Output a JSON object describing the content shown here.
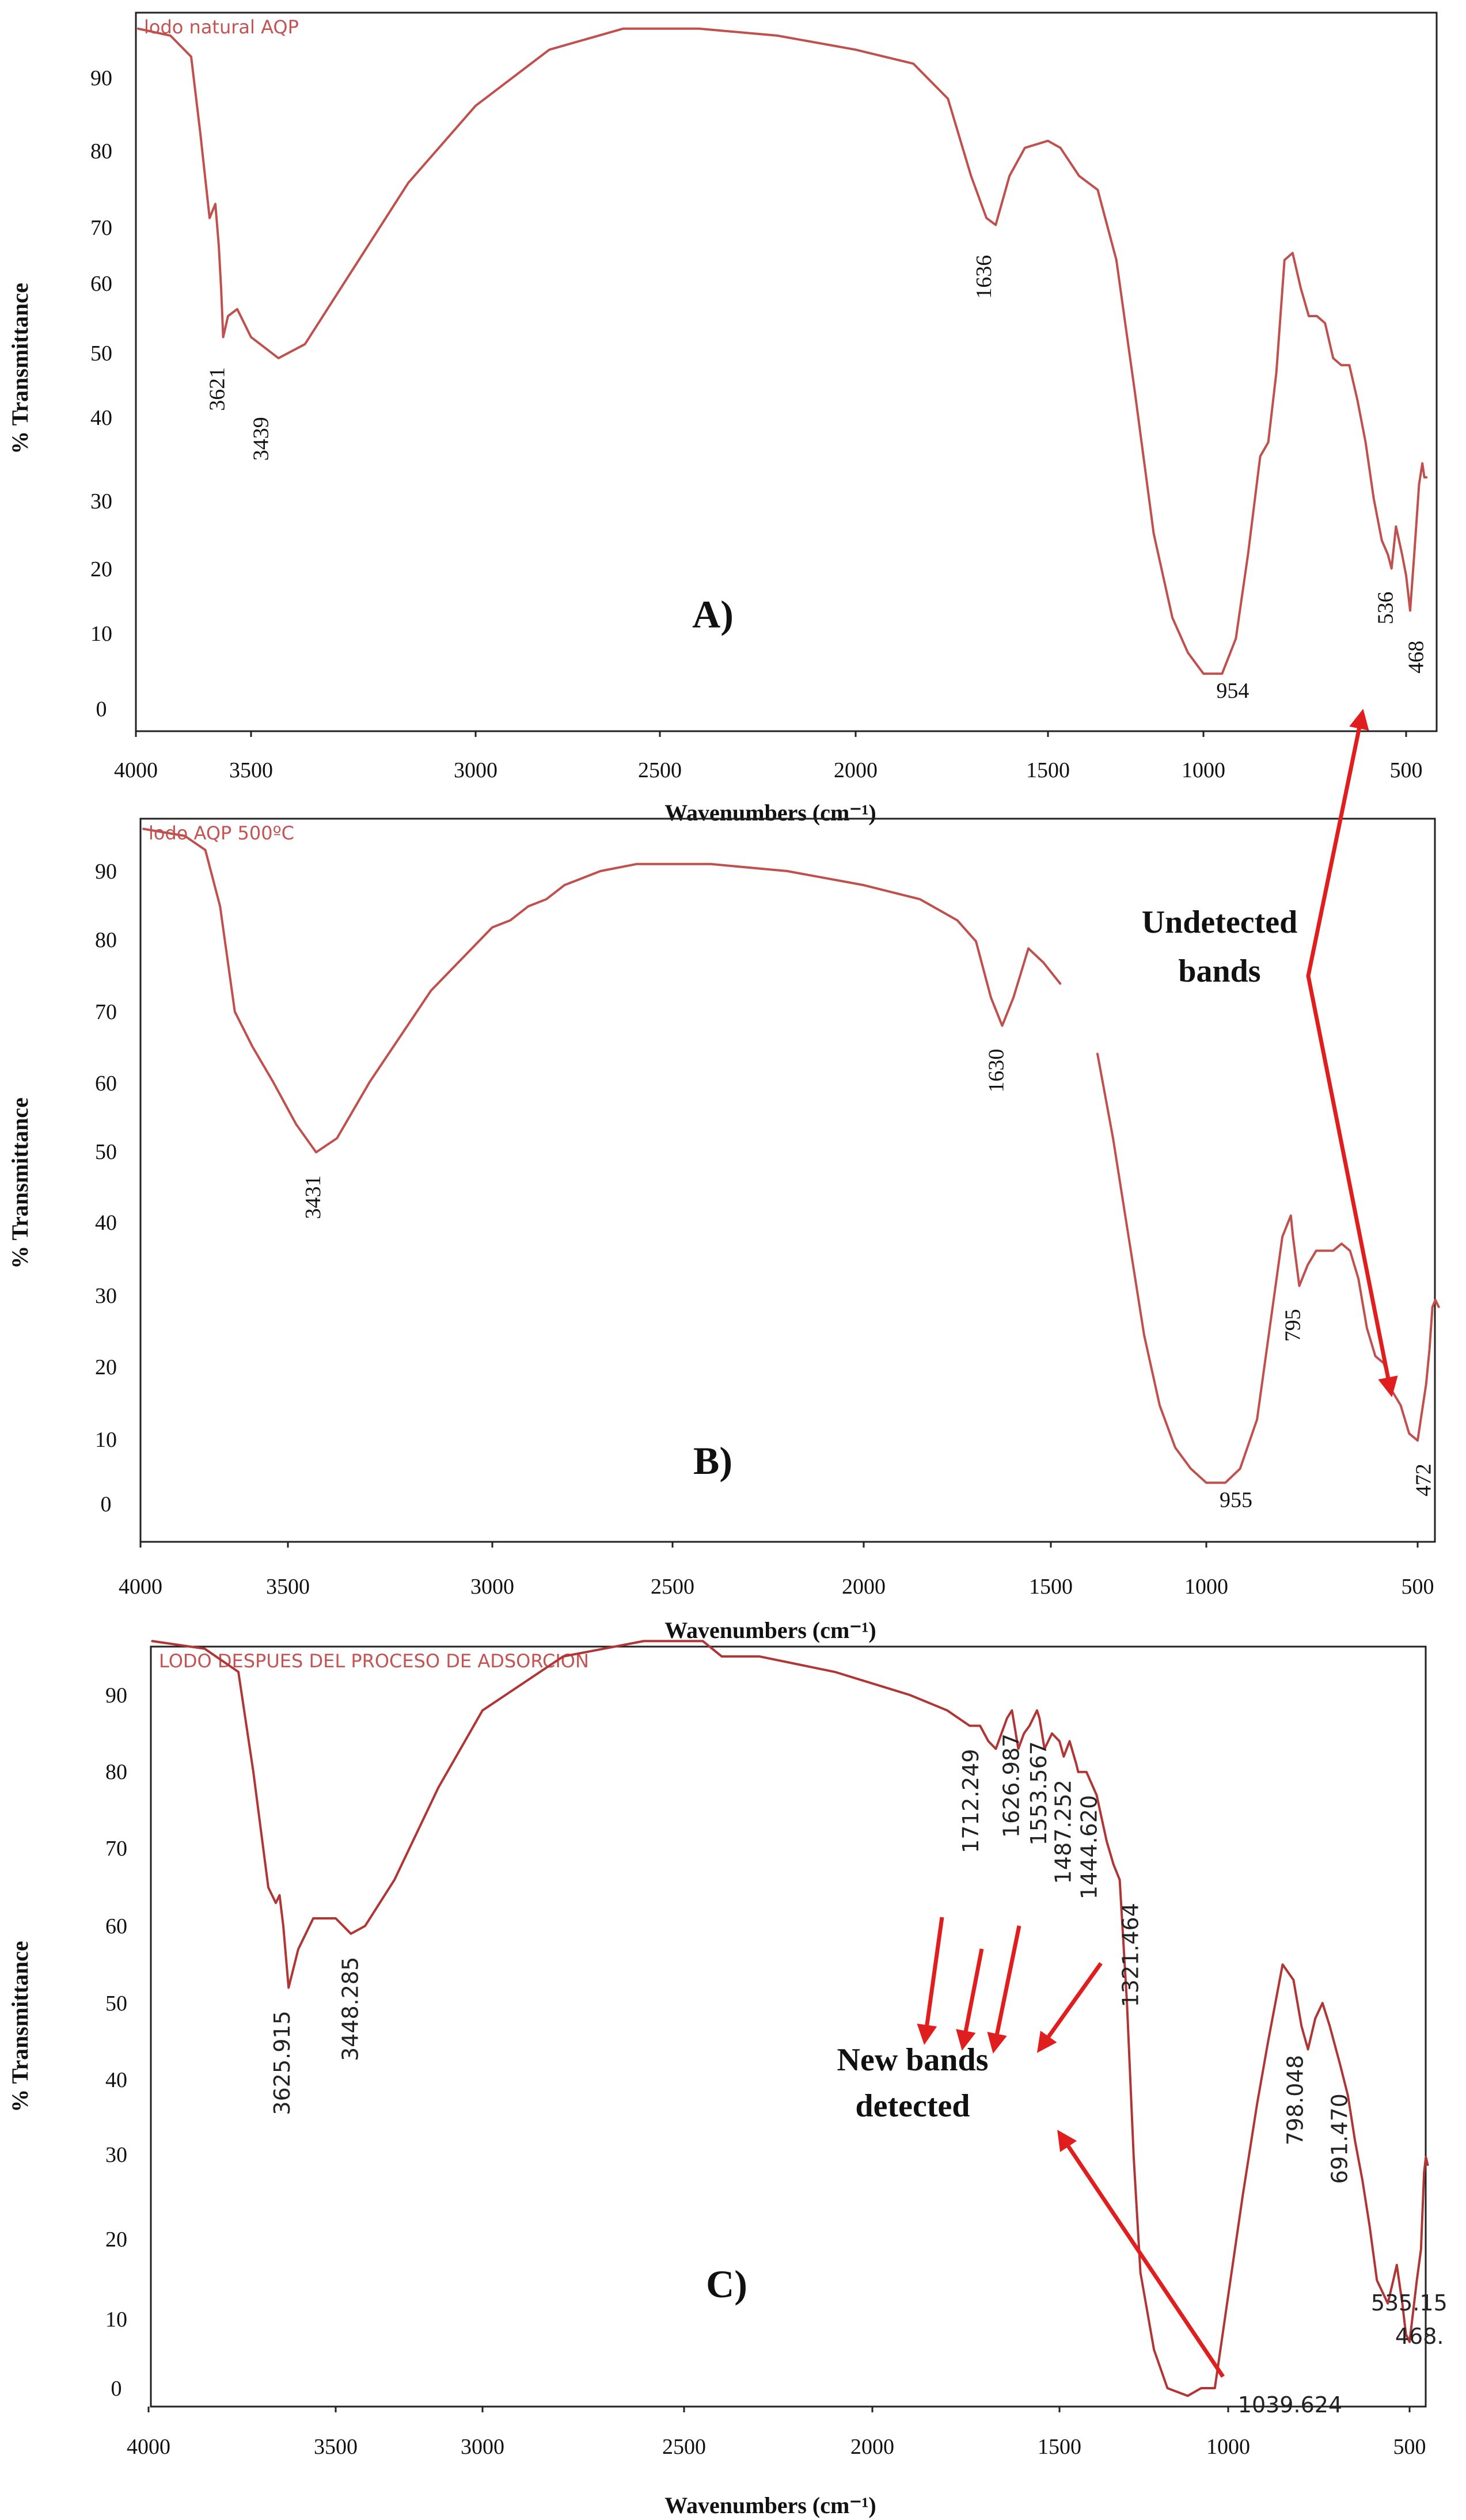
{
  "chart_data": [
    {
      "type": "line",
      "panel_label": "A)",
      "title": "lodo natural AQP",
      "xlabel": "Wavenumbers (cm⁻¹)",
      "ylabel": "% Transmittance",
      "xlim": [
        4000,
        470
      ],
      "ylim": [
        -5,
        100
      ],
      "xticks": [
        "4000",
        "3500",
        "3000",
        "2500",
        "2000",
        "1500",
        "1000",
        "500"
      ],
      "yticks": [
        "0",
        "10",
        "20",
        "30",
        "40",
        "50",
        "60",
        "70",
        "80",
        "90"
      ],
      "series": [
        {
          "name": "lodo natural AQP",
          "color": "#c0504d",
          "x": [
            3990,
            3850,
            3760,
            3720,
            3680,
            3655,
            3640,
            3630,
            3621,
            3600,
            3560,
            3500,
            3439,
            3380,
            3300,
            3150,
            3000,
            2800,
            2600,
            2400,
            2200,
            2000,
            1850,
            1760,
            1700,
            1660,
            1636,
            1600,
            1560,
            1500,
            1460,
            1400,
            1340,
            1280,
            1220,
            1160,
            1100,
            1050,
            1000,
            954,
            920,
            890,
            860,
            840,
            820,
            800,
            780,
            760,
            740,
            720,
            700,
            680,
            660,
            640,
            620,
            600,
            580,
            560,
            545,
            536,
            525,
            510,
            500,
            490,
            480,
            468,
            460,
            455,
            450
          ],
          "y": [
            97,
            96,
            93,
            82,
            70,
            72,
            66,
            60,
            53,
            56,
            57,
            53,
            50,
            52,
            60,
            75,
            86,
            94,
            97,
            97,
            96,
            94,
            92,
            87,
            76,
            70,
            69,
            76,
            80,
            81,
            80,
            76,
            74,
            64,
            45,
            25,
            13,
            8,
            5,
            5,
            10,
            22,
            36,
            38,
            48,
            64,
            65,
            60,
            56,
            56,
            55,
            50,
            49,
            49,
            44,
            38,
            30,
            24,
            22,
            20,
            26,
            22,
            19,
            14,
            22,
            32,
            35,
            33,
            33
          ]
        }
      ],
      "annotations": [
        "3621",
        "3439",
        "1636",
        "954",
        "536",
        "468"
      ]
    },
    {
      "type": "line",
      "panel_label": "B)",
      "title": "lodo AQP 500ºC",
      "xlabel": "Wavenumbers (cm⁻¹)",
      "ylabel": "% Transmittance",
      "xlim": [
        4000,
        470
      ],
      "ylim": [
        -5,
        100
      ],
      "xticks": [
        "4000",
        "3500",
        "3000",
        "2500",
        "2000",
        "1500",
        "1000",
        "500"
      ],
      "yticks": [
        "0",
        "10",
        "20",
        "30",
        "40",
        "50",
        "60",
        "70",
        "80",
        "90"
      ],
      "series": [
        {
          "name": "lodo AQP 500ºC",
          "color": "#c0504d",
          "x": [
            3990,
            3850,
            3780,
            3730,
            3680,
            3620,
            3550,
            3480,
            3431,
            3380,
            3300,
            3150,
            3000,
            2950,
            2900,
            2850,
            2800,
            2700,
            2600,
            2400,
            2200,
            2000,
            1850,
            1750,
            1700,
            1660,
            1630,
            1600,
            1560,
            1520,
            1470
          ],
          "y": [
            96,
            95,
            93,
            85,
            70,
            65,
            60,
            54,
            50,
            52,
            60,
            73,
            82,
            83,
            85,
            86,
            88,
            90,
            91,
            91,
            90,
            88,
            86,
            83,
            80,
            72,
            68,
            72,
            79,
            77,
            74
          ]
        },
        {
          "name": "lodo AQP 500ºC (continued)",
          "color": "#c0504d",
          "x": [
            1350,
            1300,
            1250,
            1200,
            1150,
            1100,
            1050,
            1000,
            955,
            920,
            880,
            850,
            820,
            800,
            795,
            780,
            760,
            740,
            720,
            700,
            680,
            660,
            640,
            620,
            600,
            580,
            560,
            540,
            520,
            500,
            490,
            480,
            472,
            465,
            458,
            450
          ],
          "y": [
            64,
            52,
            38,
            24,
            14,
            8,
            5,
            3,
            3,
            5,
            12,
            25,
            38,
            41,
            38,
            31,
            34,
            36,
            36,
            36,
            37,
            36,
            32,
            25,
            21,
            20,
            16,
            14,
            10,
            9,
            13,
            17,
            22,
            28,
            29,
            28
          ]
        }
      ],
      "annotations": [
        "3431",
        "1630",
        "955",
        "795",
        "472"
      ]
    },
    {
      "type": "line",
      "panel_label": "C)",
      "title": "LODO DESPUES DEL PROCESO DE ADSORCION",
      "xlabel": "Wavenumbers (cm⁻¹)",
      "ylabel": "% Transmittance",
      "xlim": [
        4000,
        470
      ],
      "ylim": [
        -5,
        100
      ],
      "xticks": [
        "4000",
        "3500",
        "3000",
        "2500",
        "2000",
        "1500",
        "1000",
        "500"
      ],
      "yticks": [
        "0",
        "10",
        "20",
        "30",
        "40",
        "50",
        "60",
        "70",
        "80",
        "90"
      ],
      "series": [
        {
          "name": "LODO DESPUES DEL PROCESO DE ADSORCION",
          "color": "#b03535",
          "x": [
            3990,
            3850,
            3760,
            3720,
            3680,
            3660,
            3650,
            3640,
            3625.9,
            3600,
            3560,
            3500,
            3448.3,
            3400,
            3300,
            3150,
            3000,
            2800,
            2600,
            2450,
            2400,
            2300,
            2100,
            1900,
            1800,
            1740,
            1712.2,
            1690,
            1670,
            1640,
            1627,
            1610,
            1595,
            1580,
            1560,
            1553.6,
            1540,
            1520,
            1500,
            1487.3,
            1470,
            1450,
            1444.6,
            1420,
            1390,
            1360,
            1340,
            1321.5,
            1300,
            1280,
            1260,
            1220,
            1180,
            1120,
            1080,
            1039.6,
            1000,
            960,
            920,
            890,
            870,
            850,
            820,
            798,
            780,
            760,
            740,
            720,
            691.5,
            670,
            650,
            630,
            610,
            590,
            560,
            545,
            535.2,
            520,
            510,
            500,
            490,
            480,
            468.5,
            460,
            455,
            450
          ],
          "y": [
            97,
            96,
            93,
            80,
            65,
            63,
            64,
            60,
            52,
            57,
            61,
            61,
            59,
            60,
            66,
            78,
            88,
            95,
            97,
            97,
            95,
            95,
            93,
            90,
            88,
            86,
            86,
            84,
            83,
            87,
            88,
            83,
            85,
            86,
            88,
            87,
            83,
            85,
            84,
            82,
            84,
            81,
            80,
            80,
            77,
            71,
            68,
            66,
            50,
            30,
            15,
            5,
            0,
            -1,
            0,
            0,
            12,
            25,
            37,
            45,
            50,
            55,
            53,
            47,
            44,
            48,
            50,
            47,
            42,
            38,
            32,
            27,
            21,
            14,
            11,
            14,
            16,
            11,
            7,
            6,
            10,
            14,
            18,
            28,
            30,
            29
          ]
        }
      ],
      "annotations": [
        "3625.915",
        "3448.285",
        "1712.249",
        "1626.987",
        "1553.567",
        "1487.252",
        "1444.620",
        "1321.464",
        "1039.624",
        "798.048",
        "691.470",
        "535.15",
        "468."
      ]
    }
  ],
  "notes": {
    "undetected": [
      "Undetected",
      "bands"
    ],
    "new_bands": [
      "New bands",
      "detected"
    ]
  }
}
